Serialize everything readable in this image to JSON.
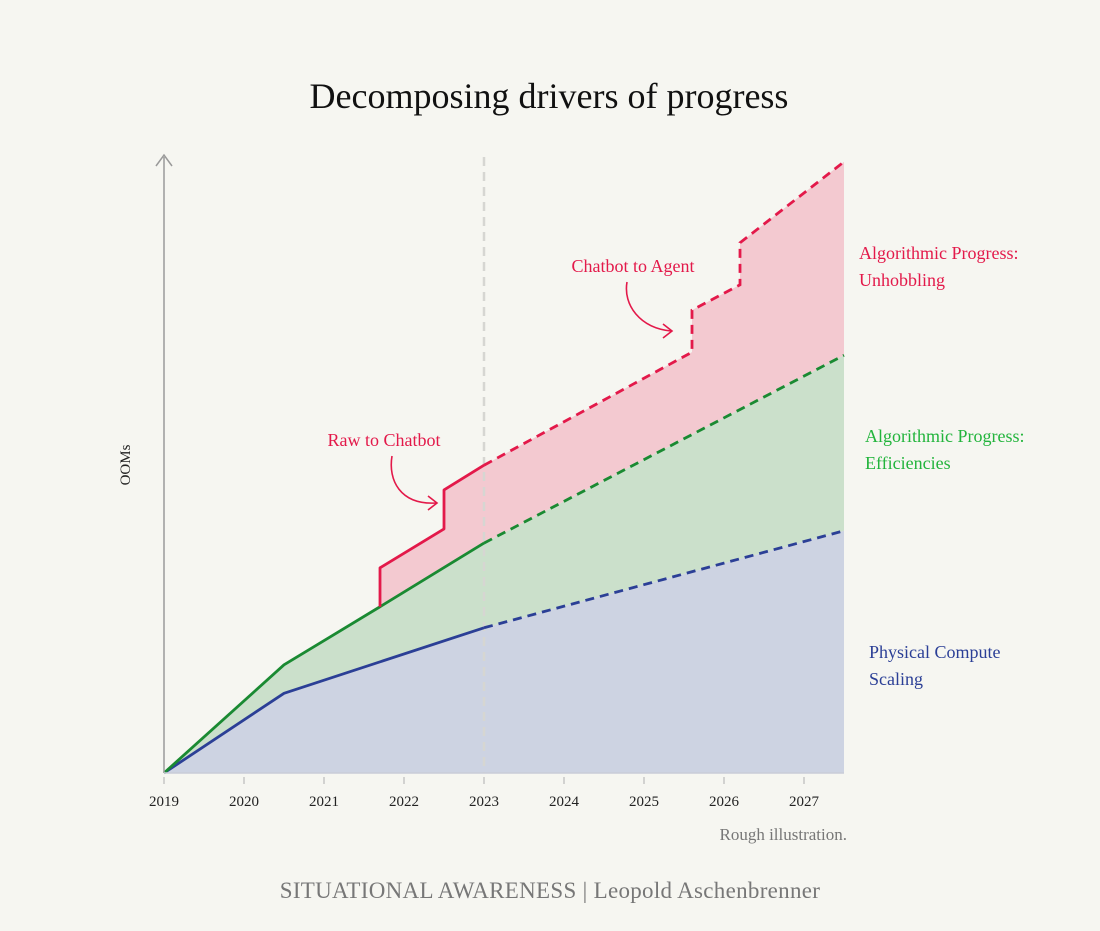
{
  "chart_data": {
    "type": "area",
    "title": "Decomposing drivers of progress",
    "xlabel": "",
    "ylabel": "OOMs",
    "xlim": [
      2019,
      2027.5
    ],
    "ylim": [
      0,
      10
    ],
    "x_ticks": [
      "2019",
      "2020",
      "2021",
      "2022",
      "2023",
      "2024",
      "2025",
      "2026",
      "2027"
    ],
    "y_ticks_shown": false,
    "grid": false,
    "projection_start": 2023,
    "projection_style": "dashed lines after the vertical dashed marker at 2023",
    "series": [
      {
        "name": "Physical Compute Scaling",
        "color": "#2b3f96",
        "fill": "#cdd3e2",
        "points": [
          [
            2019,
            0
          ],
          [
            2020.5,
            1.29
          ],
          [
            2023,
            2.35
          ],
          [
            2027.5,
            3.92
          ]
        ]
      },
      {
        "name": "Algorithmic Progress: Efficiencies",
        "color": "#1a8a32",
        "fill": "#cbe0cb",
        "points": [
          [
            2019,
            0
          ],
          [
            2020.5,
            1.75
          ],
          [
            2021.7,
            2.69
          ],
          [
            2023,
            3.72
          ],
          [
            2027.5,
            6.76
          ]
        ]
      },
      {
        "name": "Algorithmic Progress: Unhobbling",
        "color": "#e3194a",
        "fill": "#f3c9d0",
        "points": [
          [
            2021.7,
            2.69
          ],
          [
            2021.7,
            3.32
          ],
          [
            2022.5,
            3.95
          ],
          [
            2022.5,
            4.58
          ],
          [
            2023,
            4.98
          ],
          [
            2025.6,
            6.81
          ],
          [
            2025.6,
            7.49
          ],
          [
            2026.2,
            7.9
          ],
          [
            2026.2,
            8.58
          ],
          [
            2027.5,
            9.89
          ]
        ]
      }
    ],
    "legend_labels": [
      {
        "line1": "Algorithmic Progress:",
        "line2": "Unhobbling",
        "color": "#e3194a"
      },
      {
        "line1": "Algorithmic Progress:",
        "line2": "Efficiencies",
        "color": "#22b43c"
      },
      {
        "line1": "Physical Compute",
        "line2": "Scaling",
        "color": "#2b3f96"
      }
    ],
    "legend_placement": "right, beside each area",
    "annotations": [
      {
        "text": "Raw to Chatbot",
        "points_to": [
          2022.5,
          4.2
        ]
      },
      {
        "text": "Chatbot to Agent",
        "points_to": [
          2025.6,
          7.1
        ]
      }
    ],
    "note": "Rough illustration."
  },
  "footer": "SITUATIONAL AWARENESS | Leopold Aschenbrenner"
}
